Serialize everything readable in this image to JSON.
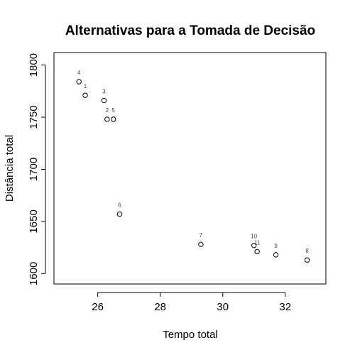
{
  "chart_data": {
    "type": "scatter",
    "title": "Alternativas para a Tomada de Decisão",
    "xlabel": "Tempo total",
    "ylabel": "Distância total",
    "xlim": [
      24.6,
      33.3
    ],
    "ylim": [
      1590,
      1812
    ],
    "x_ticks": [
      26,
      28,
      30,
      32
    ],
    "y_ticks": [
      1600,
      1650,
      1700,
      1750,
      1800
    ],
    "x_tick_labels": [
      "26",
      "28",
      "30",
      "32"
    ],
    "y_tick_labels": [
      "1600",
      "1650",
      "1700",
      "1750",
      "1800"
    ],
    "grid": false,
    "points": [
      {
        "label": "1",
        "x": 25.6,
        "y": 1771
      },
      {
        "label": "2",
        "x": 26.3,
        "y": 1748
      },
      {
        "label": "3",
        "x": 26.2,
        "y": 1766
      },
      {
        "label": "4",
        "x": 25.4,
        "y": 1784
      },
      {
        "label": "5",
        "x": 26.5,
        "y": 1748
      },
      {
        "label": "6",
        "x": 26.7,
        "y": 1657
      },
      {
        "label": "7",
        "x": 29.3,
        "y": 1628
      },
      {
        "label": "8",
        "x": 32.7,
        "y": 1613
      },
      {
        "label": "9",
        "x": 31.7,
        "y": 1618
      },
      {
        "label": "10",
        "x": 31.0,
        "y": 1627
      },
      {
        "label": "11",
        "x": 31.1,
        "y": 1621
      }
    ]
  }
}
